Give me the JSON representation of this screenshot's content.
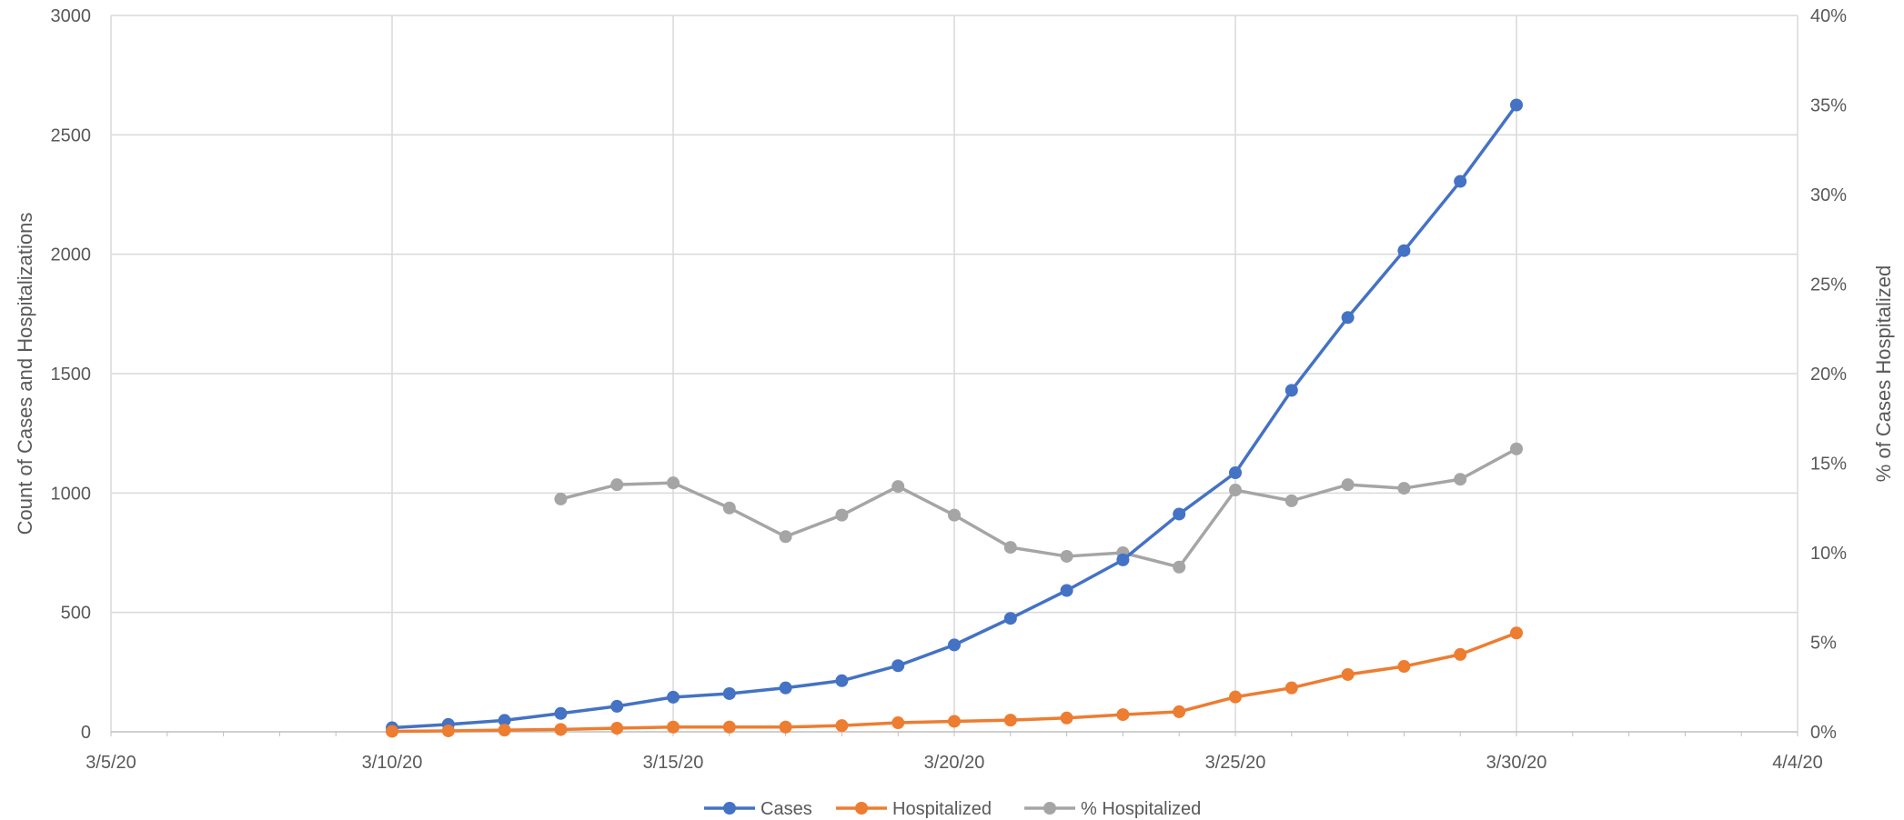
{
  "chart_data": {
    "type": "line",
    "x_axis": {
      "type": "date",
      "range": [
        "3/5/20",
        "4/4/20"
      ],
      "tick_labels": [
        "3/5/20",
        "3/10/20",
        "3/15/20",
        "3/20/20",
        "3/25/20",
        "3/30/20",
        "4/4/20"
      ],
      "grid": true
    },
    "y_axis_left": {
      "label": "Count of Cases and Hospitalizations",
      "range": [
        0,
        3000
      ],
      "tick_labels": [
        "0",
        "500",
        "1000",
        "1500",
        "2000",
        "2500",
        "3000"
      ],
      "grid": true
    },
    "y_axis_right": {
      "label": "% of Cases Hospitalized",
      "range": [
        0,
        40
      ],
      "unit": "%",
      "tick_labels": [
        "0%",
        "5%",
        "10%",
        "15%",
        "20%",
        "25%",
        "30%",
        "35%",
        "40%"
      ]
    },
    "legend": {
      "placement": "bottom-center",
      "entries": [
        "Cases",
        "Hospitalized",
        "% Hospitalized"
      ]
    },
    "series": [
      {
        "name": "Cases",
        "axis": "left",
        "color": "#4472C4",
        "x": [
          "3/10/20",
          "3/11/20",
          "3/12/20",
          "3/13/20",
          "3/14/20",
          "3/15/20",
          "3/16/20",
          "3/17/20",
          "3/18/20",
          "3/19/20",
          "3/20/20",
          "3/21/20",
          "3/22/20",
          "3/23/20",
          "3/24/20",
          "3/25/20",
          "3/26/20",
          "3/27/20",
          "3/28/20",
          "3/29/20",
          "3/30/20"
        ],
        "values": [
          17,
          31,
          48,
          77,
          107,
          145,
          160,
          184,
          214,
          277,
          364,
          475,
          592,
          720,
          912,
          1085,
          1430,
          1735,
          2015,
          2305,
          2625
        ]
      },
      {
        "name": "Hospitalized",
        "axis": "left",
        "color": "#ED7D31",
        "x": [
          "3/10/20",
          "3/11/20",
          "3/12/20",
          "3/13/20",
          "3/14/20",
          "3/15/20",
          "3/16/20",
          "3/17/20",
          "3/18/20",
          "3/19/20",
          "3/20/20",
          "3/21/20",
          "3/22/20",
          "3/23/20",
          "3/24/20",
          "3/25/20",
          "3/26/20",
          "3/27/20",
          "3/28/20",
          "3/29/20",
          "3/30/20"
        ],
        "values": [
          2,
          4,
          7,
          10,
          15,
          20,
          20,
          20,
          26,
          38,
          44,
          49,
          58,
          72,
          84,
          146,
          184,
          240,
          274,
          324,
          414
        ]
      },
      {
        "name": "% Hospitalized",
        "axis": "right",
        "unit": "%",
        "color": "#A5A5A5",
        "x": [
          "3/13/20",
          "3/14/20",
          "3/15/20",
          "3/16/20",
          "3/17/20",
          "3/18/20",
          "3/19/20",
          "3/20/20",
          "3/21/20",
          "3/22/20",
          "3/23/20",
          "3/24/20",
          "3/25/20",
          "3/26/20",
          "3/27/20",
          "3/28/20",
          "3/29/20",
          "3/30/20"
        ],
        "values": [
          13.0,
          13.8,
          13.9,
          12.5,
          10.9,
          12.1,
          13.7,
          12.1,
          10.3,
          9.8,
          10.0,
          9.2,
          13.5,
          12.9,
          13.8,
          13.6,
          14.1,
          15.8
        ]
      }
    ]
  }
}
